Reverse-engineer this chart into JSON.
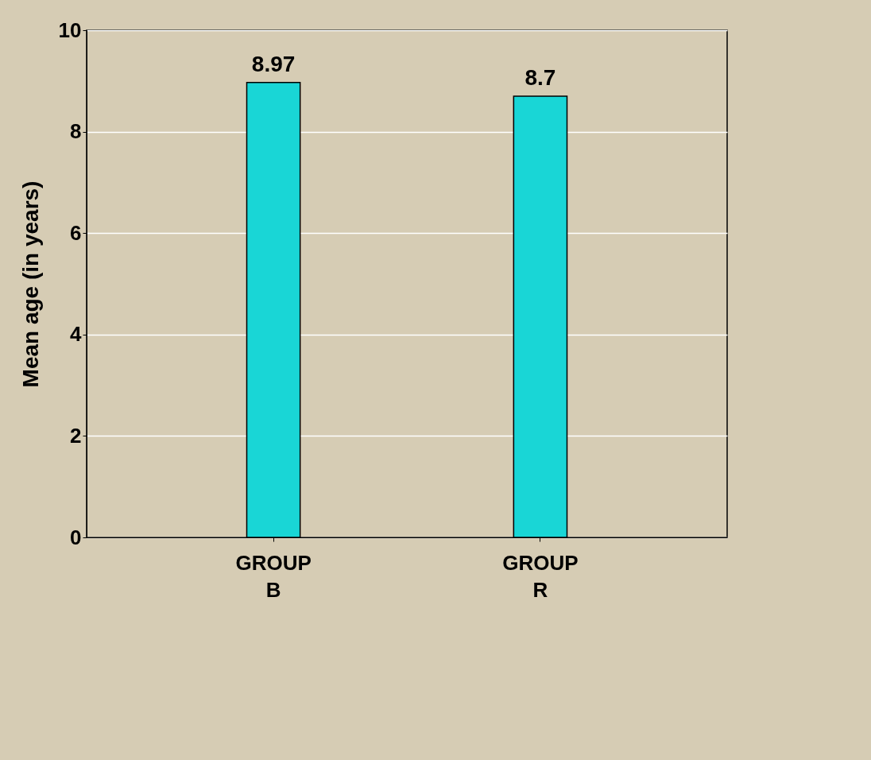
{
  "chart_data": {
    "type": "bar",
    "ylabel": "Mean age (in years)",
    "categories": [
      "GROUP B",
      "GROUP R"
    ],
    "values": [
      8.97,
      8.7
    ],
    "color": "#19d6d6",
    "ylim": [
      0,
      10
    ],
    "yticks": [
      0,
      2,
      4,
      6,
      8,
      10
    ],
    "grid": "y",
    "data_labels": true
  }
}
